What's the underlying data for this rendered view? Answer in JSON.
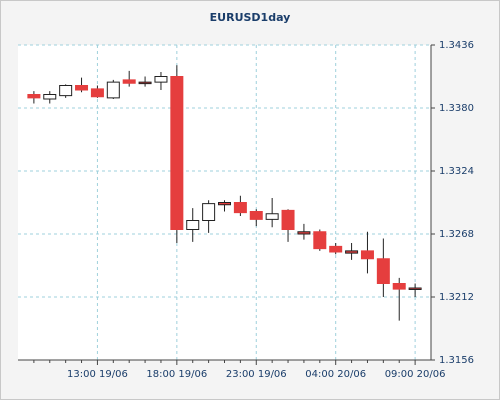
{
  "chart_data": {
    "type": "candlestick",
    "title": "EURUSD1day",
    "categories": [
      null,
      null,
      null,
      null,
      "13:00 19/06",
      null,
      null,
      null,
      null,
      "18:00 19/06",
      null,
      null,
      null,
      null,
      "23:00 19/06",
      null,
      null,
      null,
      null,
      "04:00 20/06",
      null,
      null,
      null,
      null,
      "09:00 20/06"
    ],
    "open": [
      1.3392,
      1.3388,
      1.3391,
      1.34,
      1.3397,
      1.3389,
      1.3405,
      1.3403,
      1.3403,
      1.3408,
      1.3272,
      1.328,
      1.3296,
      1.3296,
      1.3288,
      1.3281,
      1.3289,
      1.327,
      1.327,
      1.3257,
      1.3253,
      1.3253,
      1.3246,
      1.3224,
      1.322
    ],
    "high": [
      1.3395,
      1.3395,
      1.3401,
      1.3407,
      1.34,
      1.3405,
      1.3413,
      1.3408,
      1.3412,
      1.3418,
      1.3291,
      1.3298,
      1.3298,
      1.3302,
      1.329,
      1.33,
      1.329,
      1.3277,
      1.3272,
      1.326,
      1.326,
      1.327,
      1.3264,
      1.3229,
      1.3224
    ],
    "low": [
      1.3384,
      1.3384,
      1.3389,
      1.3394,
      1.3389,
      1.3388,
      1.3399,
      1.3399,
      1.3396,
      1.326,
      1.3261,
      1.3269,
      1.3288,
      1.3284,
      1.3275,
      1.3274,
      1.3261,
      1.3263,
      1.3253,
      1.325,
      1.3245,
      1.3233,
      1.3212,
      1.3191,
      1.3212
    ],
    "close": [
      1.3389,
      1.3392,
      1.34,
      1.3396,
      1.339,
      1.3403,
      1.3402,
      1.3402,
      1.3408,
      1.3272,
      1.328,
      1.3295,
      1.3294,
      1.3287,
      1.3281,
      1.3286,
      1.3272,
      1.3268,
      1.3255,
      1.3252,
      1.3251,
      1.3246,
      1.3224,
      1.3219,
      1.3219
    ],
    "up_color": "#ffffff",
    "down_color": "#e53e3e",
    "ylim": [
      1.3156,
      1.3436
    ],
    "yticks": [
      1.3156,
      1.3212,
      1.3268,
      1.3324,
      {
        "value": 1.338,
        "label": "1.3380"
      },
      1.3436
    ],
    "grid": true
  }
}
